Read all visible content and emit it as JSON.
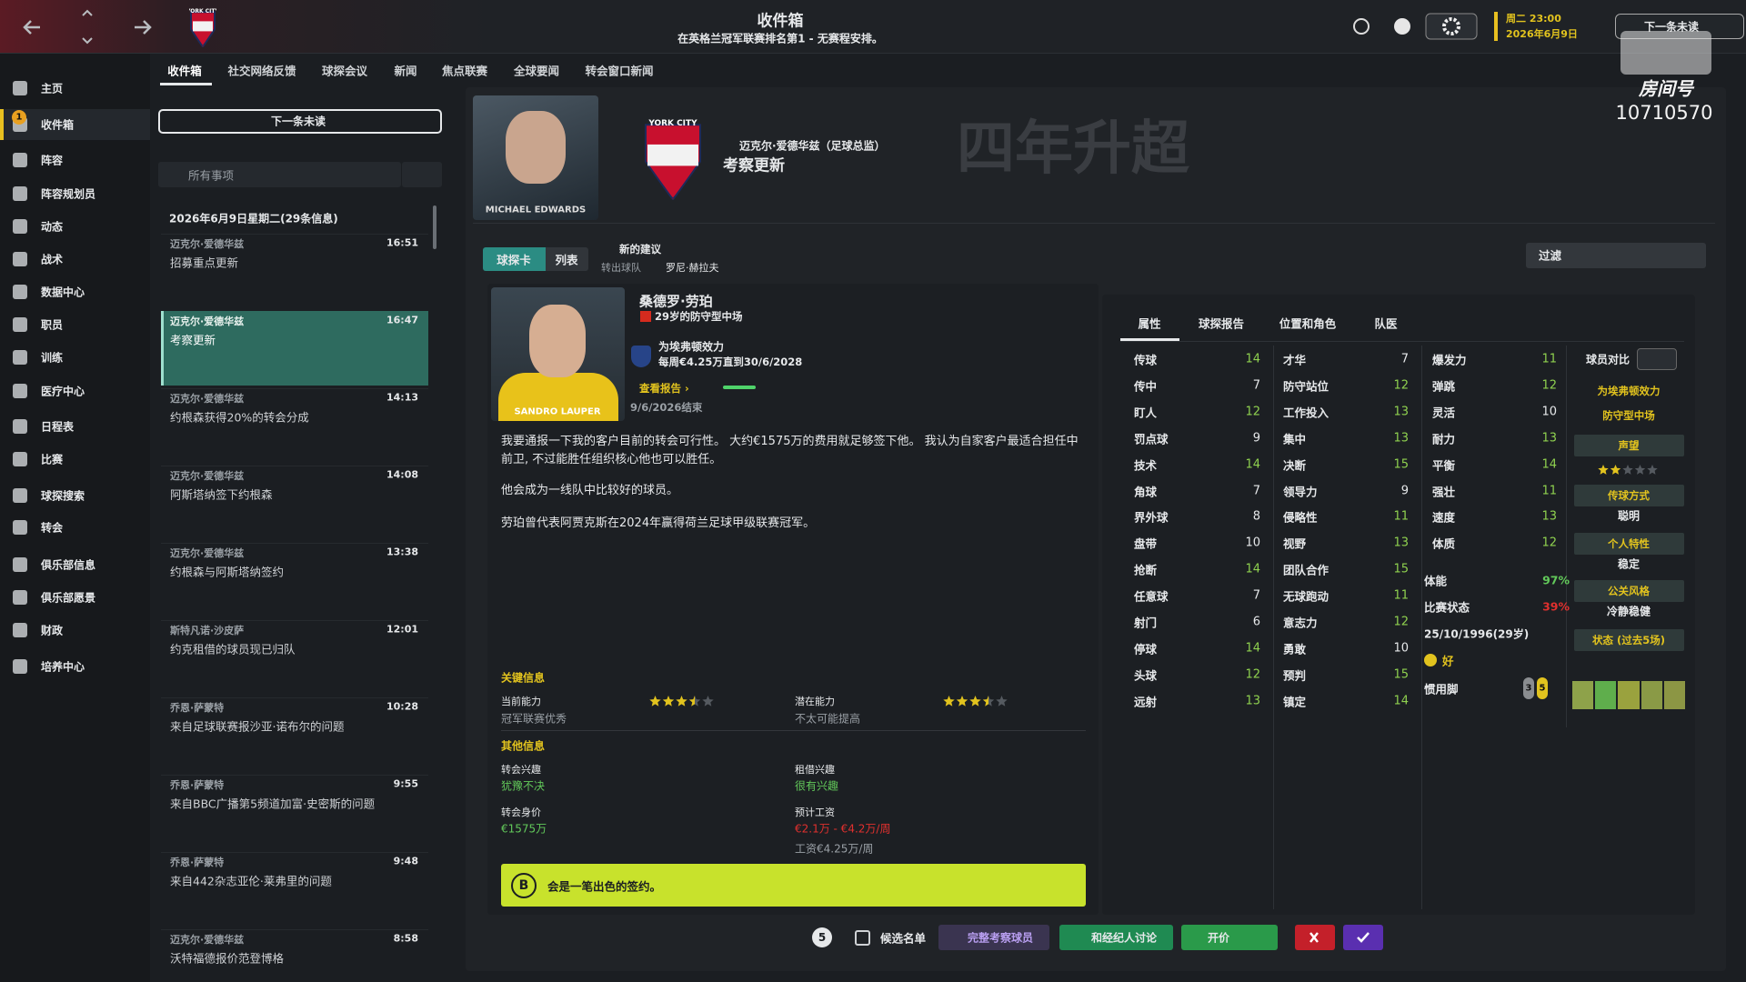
{
  "topbar": {
    "title": "收件箱",
    "subtitle": "在英格兰冠军联赛排名第1 - 无赛程安排。",
    "time": "周二 23:00",
    "date": "2026年6月9日",
    "next_unread": "下一条未读",
    "crest": "YORK CITY"
  },
  "watermark": {
    "room_label": "房间号",
    "room_id": "10710570"
  },
  "sidebar": {
    "inbox_badge": 1,
    "items": [
      "主页",
      "收件箱",
      "阵容",
      "阵容规划员",
      "动态",
      "战术",
      "数据中心",
      "职员",
      "训练",
      "医疗中心",
      "日程表",
      "比赛",
      "球探搜索",
      "转会",
      "俱乐部信息",
      "俱乐部愿景",
      "财政",
      "培养中心"
    ]
  },
  "tabs": [
    "收件箱",
    "社交网络反馈",
    "球探会议",
    "新闻",
    "焦点联赛",
    "全球要闻",
    "转会窗口新闻"
  ],
  "inbox": {
    "next_unread": "下一条未读",
    "search": "所有事项",
    "date_header": "2026年6月9日星期二(29条信息)",
    "items": [
      {
        "sender": "迈克尔·爱德华兹",
        "time": "16:51",
        "subject": "招募重点更新"
      },
      {
        "sender": "迈克尔·爱德华兹",
        "time": "16:47",
        "subject": "考察更新"
      },
      {
        "sender": "迈克尔·爱德华兹",
        "time": "14:13",
        "subject": "约根森获得20%的转会分成"
      },
      {
        "sender": "迈克尔·爱德华兹",
        "time": "14:08",
        "subject": "阿斯塔纳签下约根森"
      },
      {
        "sender": "迈克尔·爱德华兹",
        "time": "13:38",
        "subject": "约根森与阿斯塔纳签约"
      },
      {
        "sender": "斯特凡诺·沙皮萨",
        "time": "12:01",
        "subject": "约克租借的球员现已归队"
      },
      {
        "sender": "乔恩·萨蒙特",
        "time": "10:28",
        "subject": "来自足球联赛报沙亚·诺布尔的问题"
      },
      {
        "sender": "乔恩·萨蒙特",
        "time": "9:55",
        "subject": "来自BBC广播第5频道加富·史密斯的问题"
      },
      {
        "sender": "乔恩·萨蒙特",
        "time": "9:48",
        "subject": "来自442杂志亚伦·莱弗里的问题"
      },
      {
        "sender": "迈克尔·爱德华兹",
        "time": "8:58",
        "subject": "沃特福德报价范登博格"
      }
    ]
  },
  "message": {
    "photo_caption": "MICHAEL EDWARDS",
    "crest": "YORK CITY",
    "sender": "迈克尔·爱德华兹（足球总监）",
    "subject": "考察更新",
    "overlay": "四年升超",
    "view_tabs": [
      "球探卡",
      "列表"
    ],
    "suggestion": "新的建议",
    "from_label": "转出球队",
    "from_name": "罗尼·赫拉夫",
    "filter": "过滤"
  },
  "player": {
    "photo_caption": "SANDRO LAUPER",
    "name": "桑德罗·劳珀",
    "description": "29岁的防守型中场",
    "club": "为埃弗顿效力",
    "contract": "每周€4.25万直到30/6/2028",
    "view_report": "查看报告 ›",
    "ends": "9/6/2026结束",
    "paragraphs": [
      "我要通报一下我的客户目前的转会可行性。 大约€1575万的费用就足够签下他。 我认为自家客户最适合担任中前卫, 不过能胜任组织核心他也可以胜任。",
      "他会成为一线队中比较好的球员。",
      "劳珀曾代表阿贾克斯在2024年赢得荷兰足球甲级联赛冠军。"
    ],
    "key_info": {
      "title": "关键信息",
      "current_label": "当前能力",
      "current_stars": 3.5,
      "current_note": "冠军联赛优秀",
      "potential_label": "潜在能力",
      "potential_stars": 3.5,
      "potential_note": "不太可能提高"
    },
    "other_info": {
      "title": "其他信息",
      "transfer_interest_label": "转会兴趣",
      "transfer_interest": "犹豫不决",
      "loan_interest_label": "租借兴趣",
      "loan_interest": "很有兴趣",
      "value_label": "转会身价",
      "value": "€1575万",
      "wage_label": "预计工资",
      "wage_range": "€2.1万 - €4.2万/周",
      "current_wage": "工资€4.25万/周"
    },
    "verdict_grade": "B",
    "verdict": "会是一笔出色的签约。"
  },
  "attributes": {
    "tabs": [
      "属性",
      "球探报告",
      "位置和角色",
      "队医"
    ],
    "columns": [
      [
        {
          "name": "传球",
          "value": 14
        },
        {
          "name": "传中",
          "value": 7
        },
        {
          "name": "盯人",
          "value": 12
        },
        {
          "name": "罚点球",
          "value": 9
        },
        {
          "name": "技术",
          "value": 14
        },
        {
          "name": "角球",
          "value": 7
        },
        {
          "name": "界外球",
          "value": 8
        },
        {
          "name": "盘带",
          "value": 10
        },
        {
          "name": "抢断",
          "value": 14
        },
        {
          "name": "任意球",
          "value": 7
        },
        {
          "name": "射门",
          "value": 6
        },
        {
          "name": "停球",
          "value": 14
        },
        {
          "name": "头球",
          "value": 12
        },
        {
          "name": "远射",
          "value": 13
        }
      ],
      [
        {
          "name": "才华",
          "value": 7
        },
        {
          "name": "防守站位",
          "value": 12
        },
        {
          "name": "工作投入",
          "value": 13
        },
        {
          "name": "集中",
          "value": 13
        },
        {
          "name": "决断",
          "value": 15
        },
        {
          "name": "领导力",
          "value": 9
        },
        {
          "name": "侵略性",
          "value": 11
        },
        {
          "name": "视野",
          "value": 13
        },
        {
          "name": "团队合作",
          "value": 15
        },
        {
          "name": "无球跑动",
          "value": 11
        },
        {
          "name": "意志力",
          "value": 12
        },
        {
          "name": "勇敢",
          "value": 10
        },
        {
          "name": "预判",
          "value": 15
        },
        {
          "name": "镇定",
          "value": 14
        }
      ],
      [
        {
          "name": "爆发力",
          "value": 11
        },
        {
          "name": "弹跳",
          "value": 12
        },
        {
          "name": "灵活",
          "value": 10
        },
        {
          "name": "耐力",
          "value": 13
        },
        {
          "name": "平衡",
          "value": 14
        },
        {
          "name": "强壮",
          "value": 11
        },
        {
          "name": "速度",
          "value": 13
        },
        {
          "name": "体质",
          "value": 12
        }
      ]
    ]
  },
  "status": {
    "fitness_label": "体能",
    "fitness": "97%",
    "match_form_label": "比赛状态",
    "match_form": "39%",
    "birth": "25/10/1996(29岁)",
    "morale": "好",
    "foot_label": "惯用脚",
    "left_foot": 3,
    "right_foot": 5
  },
  "comparison": {
    "label": "球员对比",
    "club": "为埃弗顿效力",
    "position": "防守型中场",
    "reputation_label": "声望",
    "reputation_stars": 2,
    "passing_label": "传球方式",
    "passing": "聪明",
    "personality_label": "个人特性",
    "personality": "稳定",
    "media_label": "公关风格",
    "media": "冷静稳健",
    "form_label": "状态 (过去5场)"
  },
  "actions": {
    "count": 5,
    "shortlist": "候选名单",
    "full_scout": "完整考察球员",
    "agent": "和经纪人讨论",
    "offer": "开价"
  }
}
